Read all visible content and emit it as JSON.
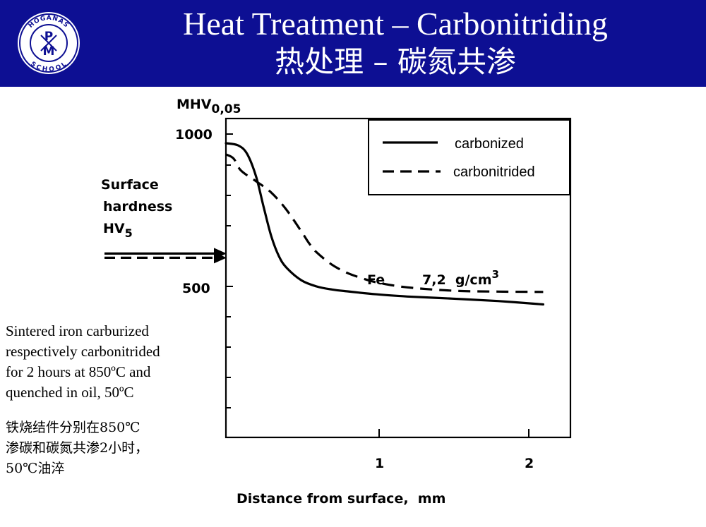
{
  "header": {
    "title_en": "Heat Treatment – Carbonitriding",
    "title_zh": "热处理 – 碳氮共渗",
    "background": "#0d0f93",
    "logo": {
      "top_text": "HÖGANÄS",
      "bottom_text": "SCHOOL",
      "letter_p": "P",
      "letter_m": "M"
    }
  },
  "notes": {
    "english": [
      "Sintered iron carburized",
      "respectively carbonitrided",
      "for 2 hours at 850ºC and",
      "quenched in oil, 50ºC"
    ],
    "chinese": [
      "铁烧结件分别在850℃",
      "渗碳和碳氮共渗2小时，",
      "50℃油淬"
    ]
  },
  "chart_data": {
    "type": "line",
    "ylabel": "MHV",
    "ylabel_subscript": "0,05",
    "xlabel": "Distance from surface,  mm",
    "ytick_labels": [
      "1000",
      "500"
    ],
    "xtick_labels": [
      "1",
      "2"
    ],
    "xlim": [
      0,
      2.2
    ],
    "ylim": [
      455,
      1005
    ],
    "annotation": {
      "material": "Fe",
      "density": "7,2  g/cm",
      "density_exp": "3"
    },
    "surface_hardness": {
      "label_lines": [
        "Surface",
        "hardness",
        "HV"
      ],
      "label_subscript": "5",
      "values": {
        "carbonized": 608,
        "carbonitrided": 594
      }
    },
    "series": [
      {
        "name": "carbonized",
        "style": "solid",
        "x": [
          0,
          0.08,
          0.14,
          0.2,
          0.25,
          0.3,
          0.35,
          0.4,
          0.5,
          0.6,
          0.7,
          0.8,
          1.0,
          1.2,
          1.5,
          1.8,
          2.1
        ],
        "y": [
          970,
          963,
          935,
          860,
          760,
          665,
          600,
          562,
          520,
          500,
          490,
          484,
          474,
          467,
          460,
          452,
          441
        ]
      },
      {
        "name": "carbonitrided",
        "style": "dashed",
        "x": [
          0,
          0.05,
          0.1,
          0.2,
          0.3,
          0.4,
          0.5,
          0.55,
          0.6,
          0.7,
          0.8,
          0.9,
          1.0,
          1.2,
          1.5,
          1.8,
          2.1
        ],
        "y": [
          933,
          920,
          880,
          845,
          808,
          752,
          680,
          642,
          612,
          572,
          545,
          527,
          513,
          497,
          486,
          483,
          482
        ]
      }
    ]
  }
}
